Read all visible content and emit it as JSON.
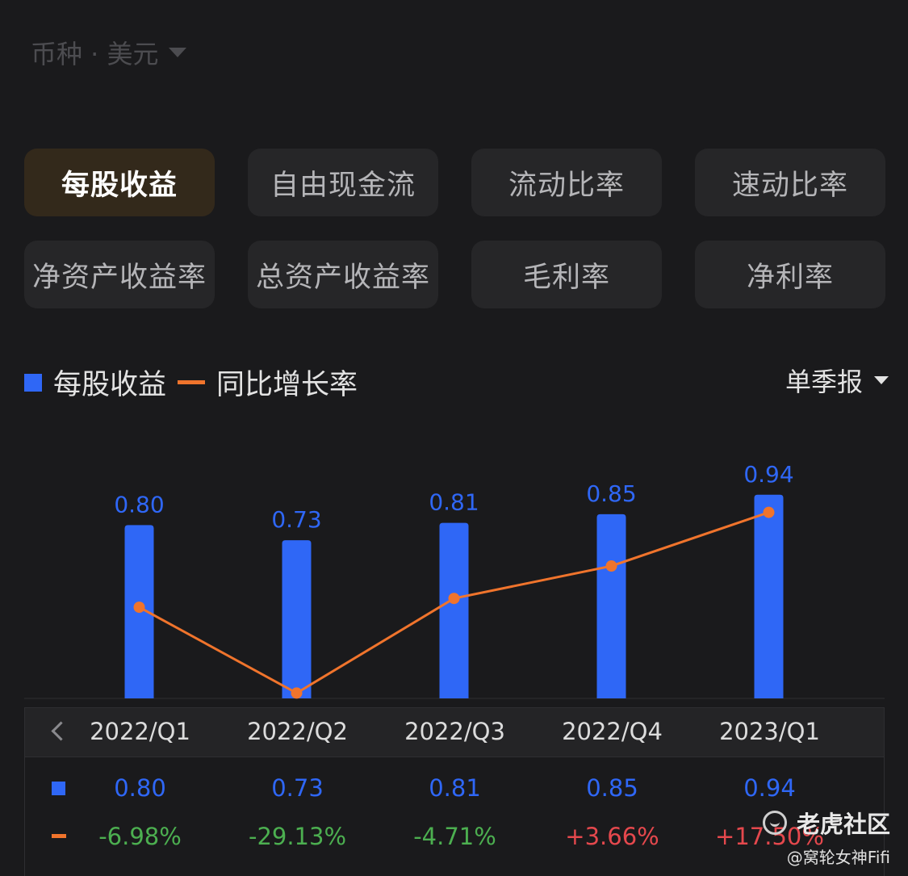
{
  "currency": {
    "label": "币种 · 美元"
  },
  "metrics": [
    {
      "label": "每股收益",
      "active": true
    },
    {
      "label": "自由现金流",
      "active": false
    },
    {
      "label": "流动比率",
      "active": false
    },
    {
      "label": "速动比率",
      "active": false
    },
    {
      "label": "净资产收益率",
      "active": false
    },
    {
      "label": "总资产收益率",
      "active": false
    },
    {
      "label": "毛利率",
      "active": false
    },
    {
      "label": "净利率",
      "active": false
    }
  ],
  "legend": {
    "bar_label": "每股收益",
    "line_label": "同比增长率"
  },
  "period_selector": {
    "label": "单季报"
  },
  "colors": {
    "bar": "#2f67f6",
    "line": "#f0742c",
    "negative": "#4caf50",
    "positive": "#e5484d",
    "background": "#1a1a1c"
  },
  "chart_data": {
    "type": "bar",
    "categories": [
      "2022/Q1",
      "2022/Q2",
      "2022/Q3",
      "2022/Q4",
      "2023/Q1"
    ],
    "series": [
      {
        "name": "每股收益",
        "type": "bar",
        "values": [
          0.8,
          0.73,
          0.81,
          0.85,
          0.94
        ],
        "labels": [
          "0.80",
          "0.73",
          "0.81",
          "0.85",
          "0.94"
        ]
      },
      {
        "name": "同比增长率",
        "type": "line",
        "values": [
          -6.98,
          -29.13,
          -4.71,
          3.66,
          17.5
        ],
        "labels": [
          "-6.98%",
          "-29.13%",
          "-4.71%",
          "+3.66%",
          "+17.50%"
        ]
      }
    ],
    "grid": false,
    "legend_position": "top-left"
  },
  "watermark": {
    "brand": "老虎社区",
    "user": "@窝轮女神Fifi"
  }
}
